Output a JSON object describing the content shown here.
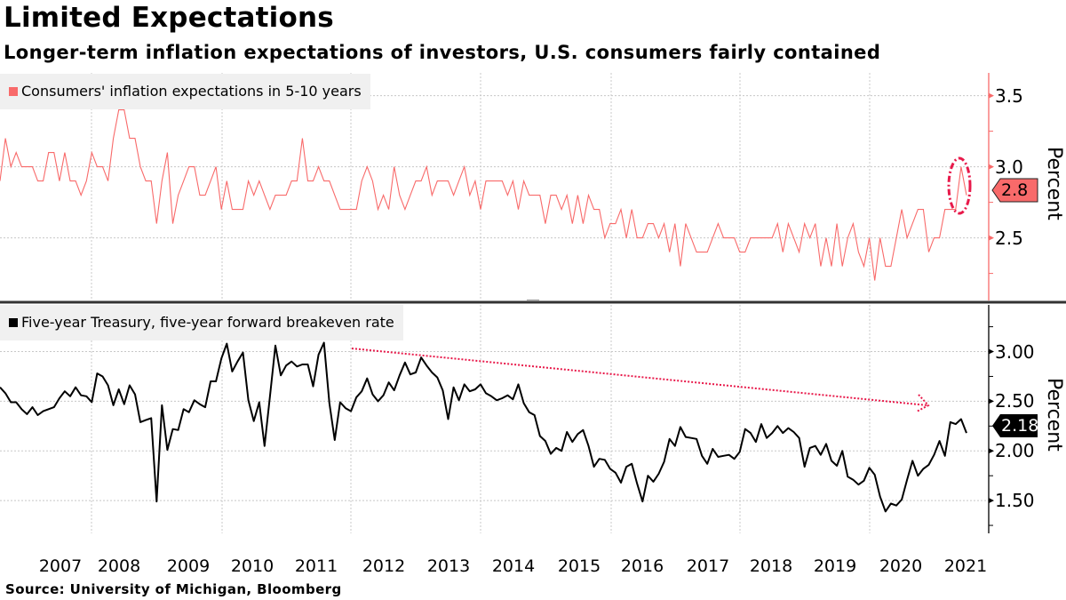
{
  "title": "Limited Expectations",
  "subtitle": "Longer-term inflation expectations of investors, U.S. consumers fairly contained",
  "source": "Source: University of Michigan, Bloomberg",
  "colors": {
    "consumers": "#f86a6a",
    "breakeven": "#000000",
    "annotation": "#e8194a",
    "grid": "#c8c8c8"
  },
  "chart_data": [
    {
      "type": "line",
      "legend": "Consumers' inflation expectations in 5-10 years",
      "legend_placement": "top-left",
      "ylabel": "Percent",
      "ylim": [
        2.06,
        3.66
      ],
      "yticks": [
        "3.5",
        "3.0",
        "2.5"
      ],
      "ytick_values": [
        3.5,
        3.0,
        2.5
      ],
      "grid": true,
      "last_value_label": "2.8",
      "series": [
        {
          "name": "Consumers' inflation expectations in 5-10 years",
          "values": [
            2.9,
            3.2,
            3.0,
            3.1,
            3.0,
            3.0,
            3.0,
            2.9,
            2.9,
            3.1,
            3.1,
            2.9,
            3.1,
            2.9,
            2.9,
            2.8,
            2.9,
            3.1,
            3.0,
            3.0,
            2.9,
            3.2,
            3.4,
            3.4,
            3.2,
            3.2,
            3.0,
            2.9,
            2.9,
            2.6,
            2.9,
            3.1,
            2.6,
            2.8,
            2.9,
            3.0,
            3.0,
            2.8,
            2.8,
            2.9,
            3.0,
            2.7,
            2.9,
            2.7,
            2.7,
            2.7,
            2.9,
            2.8,
            2.9,
            2.8,
            2.7,
            2.8,
            2.8,
            2.8,
            2.9,
            2.9,
            3.2,
            2.9,
            2.9,
            3.0,
            2.9,
            2.9,
            2.8,
            2.7,
            2.7,
            2.7,
            2.7,
            2.9,
            3.0,
            2.9,
            2.7,
            2.8,
            2.7,
            3.0,
            2.8,
            2.7,
            2.8,
            2.9,
            2.9,
            3.0,
            2.8,
            2.9,
            2.9,
            2.9,
            2.8,
            2.9,
            3.0,
            2.8,
            2.9,
            2.7,
            2.9,
            2.9,
            2.9,
            2.9,
            2.8,
            2.9,
            2.7,
            2.9,
            2.8,
            2.8,
            2.8,
            2.6,
            2.8,
            2.8,
            2.7,
            2.8,
            2.6,
            2.8,
            2.6,
            2.8,
            2.7,
            2.7,
            2.5,
            2.6,
            2.6,
            2.7,
            2.5,
            2.7,
            2.5,
            2.5,
            2.6,
            2.6,
            2.5,
            2.6,
            2.4,
            2.6,
            2.3,
            2.6,
            2.5,
            2.4,
            2.4,
            2.4,
            2.5,
            2.6,
            2.5,
            2.5,
            2.5,
            2.4,
            2.4,
            2.5,
            2.5,
            2.5,
            2.5,
            2.5,
            2.6,
            2.4,
            2.6,
            2.5,
            2.4,
            2.6,
            2.5,
            2.6,
            2.3,
            2.5,
            2.3,
            2.6,
            2.3,
            2.5,
            2.6,
            2.4,
            2.3,
            2.5,
            2.2,
            2.5,
            2.3,
            2.3,
            2.5,
            2.7,
            2.5,
            2.6,
            2.7,
            2.7,
            2.4,
            2.5,
            2.5,
            2.7,
            2.7,
            2.7,
            3.0,
            2.8
          ]
        }
      ]
    },
    {
      "type": "line",
      "legend": "Five-year Treasury, five-year forward breakeven rate",
      "legend_placement": "top-left",
      "ylabel": "Percent",
      "ylim": [
        1.17,
        3.47
      ],
      "yticks": [
        "3.00",
        "2.50",
        "2.00",
        "1.50"
      ],
      "ytick_values": [
        3.0,
        2.5,
        2.0,
        1.5
      ],
      "grid": true,
      "last_value_label": "2.18",
      "series": [
        {
          "name": "Five-year Treasury, five-year forward breakeven rate",
          "values": [
            2.64,
            2.58,
            2.49,
            2.49,
            2.42,
            2.37,
            2.44,
            2.36,
            2.4,
            2.42,
            2.44,
            2.53,
            2.6,
            2.55,
            2.64,
            2.56,
            2.55,
            2.49,
            2.78,
            2.75,
            2.66,
            2.46,
            2.62,
            2.47,
            2.66,
            2.57,
            2.29,
            2.31,
            2.33,
            1.49,
            2.46,
            2.01,
            2.22,
            2.21,
            2.42,
            2.39,
            2.51,
            2.47,
            2.44,
            2.7,
            2.7,
            2.93,
            3.08,
            2.8,
            2.9,
            2.99,
            2.51,
            2.3,
            2.49,
            2.05,
            2.55,
            3.06,
            2.76,
            2.86,
            2.9,
            2.85,
            2.87,
            2.87,
            2.65,
            2.97,
            3.09,
            2.48,
            2.11,
            2.49,
            2.43,
            2.4,
            2.54,
            2.6,
            2.73,
            2.57,
            2.5,
            2.56,
            2.69,
            2.61,
            2.76,
            2.89,
            2.77,
            2.79,
            2.94,
            2.86,
            2.79,
            2.74,
            2.61,
            2.32,
            2.64,
            2.51,
            2.67,
            2.6,
            2.62,
            2.67,
            2.58,
            2.55,
            2.51,
            2.53,
            2.56,
            2.52,
            2.67,
            2.48,
            2.39,
            2.36,
            2.15,
            2.1,
            1.97,
            2.03,
            2.0,
            2.19,
            2.09,
            2.17,
            2.21,
            2.05,
            1.84,
            1.92,
            1.91,
            1.82,
            1.78,
            1.68,
            1.84,
            1.87,
            1.67,
            1.49,
            1.75,
            1.69,
            1.77,
            1.89,
            2.12,
            2.05,
            2.24,
            2.14,
            2.13,
            2.12,
            1.95,
            1.87,
            2.02,
            1.94,
            1.95,
            1.96,
            1.92,
            1.99,
            2.22,
            2.18,
            2.09,
            2.27,
            2.13,
            2.18,
            2.25,
            2.18,
            2.23,
            2.19,
            2.13,
            1.84,
            2.03,
            2.05,
            1.96,
            2.07,
            1.9,
            1.85,
            2.0,
            1.74,
            1.71,
            1.66,
            1.7,
            1.83,
            1.76,
            1.54,
            1.39,
            1.47,
            1.45,
            1.51,
            1.71,
            1.9,
            1.75,
            1.82,
            1.86,
            1.96,
            2.1,
            1.95,
            2.29,
            2.27,
            2.32,
            2.18
          ]
        }
      ]
    }
  ],
  "xaxis": {
    "ticks": [
      "2007",
      "2008",
      "2009",
      "2010",
      "2011",
      "2012",
      "2013",
      "2014",
      "2015",
      "2016",
      "2017",
      "2018",
      "2019",
      "2020",
      "2021"
    ]
  }
}
